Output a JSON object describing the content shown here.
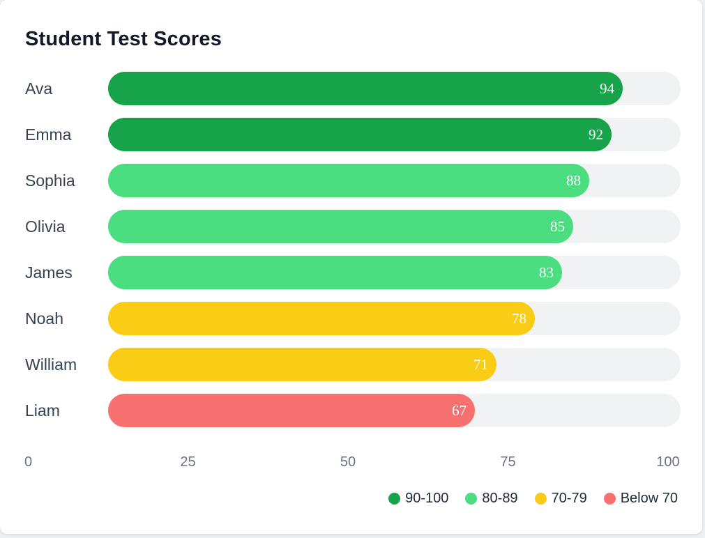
{
  "chart_data": {
    "type": "bar",
    "orientation": "horizontal",
    "title": "Student Test Scores",
    "categories": [
      "Ava",
      "Emma",
      "Sophia",
      "Olivia",
      "James",
      "Noah",
      "William",
      "Liam"
    ],
    "values": [
      94,
      92,
      88,
      85,
      83,
      78,
      71,
      67
    ],
    "xlim": [
      0,
      100
    ],
    "x_ticks": [
      "0",
      "25",
      "50",
      "75",
      "100"
    ],
    "legend_position": "bottom-right",
    "grid": false,
    "legend": [
      {
        "label": "90-100",
        "color": "#16a34a"
      },
      {
        "label": "80-89",
        "color": "#4ade80"
      },
      {
        "label": "70-79",
        "color": "#facc15"
      },
      {
        "label": "Below 70",
        "color": "#f87171"
      }
    ],
    "track_color": "#f1f2f4"
  }
}
